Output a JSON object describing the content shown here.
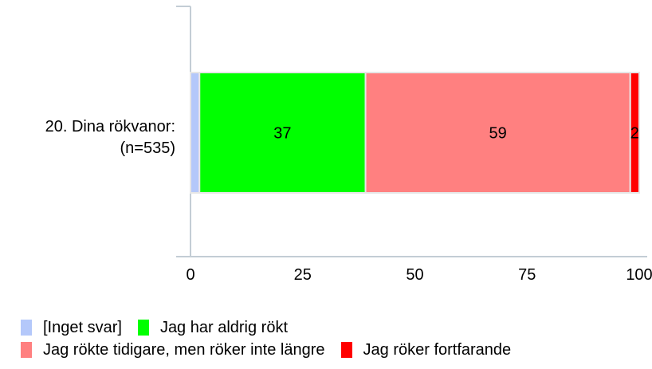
{
  "chart_data": {
    "type": "bar",
    "orientation": "horizontal",
    "stacked": true,
    "categories": [
      "20. Dina rökvanor:"
    ],
    "category_sublabels": [
      "(n=535)"
    ],
    "series": [
      {
        "name": "[Inget svar]",
        "values": [
          2
        ],
        "color": "#b4c8fa",
        "data_label": ""
      },
      {
        "name": "Jag har aldrig rökt",
        "values": [
          37
        ],
        "color": "#00ff00",
        "data_label": "37"
      },
      {
        "name": "Jag rökte tidigare, men röker inte längre",
        "values": [
          59
        ],
        "color": "#ff8080",
        "data_label": "59"
      },
      {
        "name": "Jag röker fortfarande",
        "values": [
          2
        ],
        "color": "#ff0000",
        "data_label": "2"
      }
    ],
    "xlim": [
      0,
      100
    ],
    "x_ticks": [
      "0",
      "25",
      "50",
      "75",
      "100"
    ],
    "grid": false,
    "legend_position": "bottom-left"
  }
}
